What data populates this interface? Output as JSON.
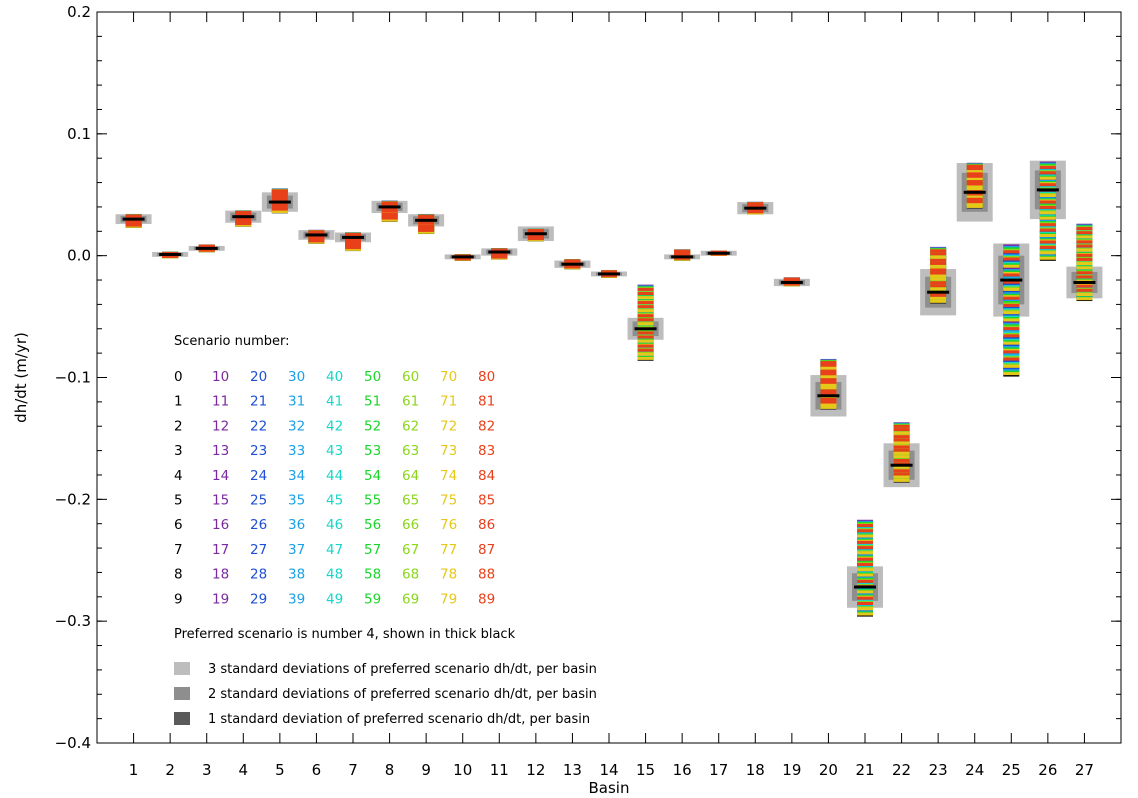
{
  "chart_data": {
    "type": "scatter",
    "xlabel": "Basin",
    "ylabel": "dh/dt (m/yr)",
    "ylim": [
      -0.4,
      0.2
    ],
    "xlim": [
      0,
      28
    ],
    "y_ticks": [
      "0.2",
      "0.1",
      "0.0",
      "−0.1",
      "−0.2",
      "−0.3",
      "−0.4"
    ],
    "y_tick_values": [
      0.2,
      0.1,
      0.0,
      -0.1,
      -0.2,
      -0.3,
      -0.4
    ],
    "x_ticks": [
      "1",
      "2",
      "3",
      "4",
      "5",
      "6",
      "7",
      "8",
      "9",
      "10",
      "11",
      "12",
      "13",
      "14",
      "15",
      "16",
      "17",
      "18",
      "19",
      "20",
      "21",
      "22",
      "23",
      "24",
      "25",
      "26",
      "27"
    ],
    "basins": [
      1,
      2,
      3,
      4,
      5,
      6,
      7,
      8,
      9,
      10,
      11,
      12,
      13,
      14,
      15,
      16,
      17,
      18,
      19,
      20,
      21,
      22,
      23,
      24,
      25,
      26,
      27
    ],
    "preferred_dhdt": [
      0.03,
      0.001,
      0.006,
      0.032,
      0.044,
      0.017,
      0.015,
      0.04,
      0.029,
      -0.001,
      0.003,
      0.018,
      -0.007,
      -0.015,
      -0.06,
      -0.001,
      0.002,
      0.039,
      -0.022,
      -0.115,
      -0.272,
      -0.172,
      -0.03,
      0.052,
      -0.02,
      0.054,
      -0.022
    ],
    "scenario_min": [
      0.024,
      -0.001,
      0.004,
      0.025,
      0.036,
      0.011,
      0.005,
      0.029,
      0.019,
      -0.003,
      -0.002,
      0.013,
      -0.01,
      -0.017,
      -0.085,
      -0.003,
      0.001,
      0.035,
      -0.024,
      -0.125,
      -0.295,
      -0.185,
      -0.038,
      0.04,
      -0.098,
      -0.003,
      -0.036
    ],
    "scenario_max": [
      0.033,
      0.002,
      0.008,
      0.036,
      0.054,
      0.02,
      0.018,
      0.044,
      0.033,
      0.0,
      0.005,
      0.021,
      -0.004,
      -0.013,
      -0.025,
      0.004,
      0.003,
      0.043,
      -0.019,
      -0.086,
      -0.218,
      -0.138,
      0.006,
      0.075,
      0.008,
      0.076,
      0.025
    ],
    "sd3_halfwidth": [
      0.004,
      0.002,
      0.002,
      0.005,
      0.008,
      0.004,
      0.004,
      0.005,
      0.005,
      0.002,
      0.003,
      0.006,
      0.003,
      0.002,
      0.009,
      0.002,
      0.002,
      0.005,
      0.003,
      0.017,
      0.017,
      0.018,
      0.019,
      0.024,
      0.03,
      0.024,
      0.013
    ],
    "scenario_legend": {
      "title": "Scenario number:",
      "rows": 10,
      "columns": 9
    },
    "preferred_note": "Preferred scenario is number 4, shown in thick black",
    "sd_legend": [
      "3 standard deviations of preferred scenario dh/dt, per basin",
      "2 standard deviations of preferred scenario dh/dt, per basin",
      "1 standard deviation of preferred scenario dh/dt, per basin"
    ],
    "colors": {
      "sd3": "#bdbdbd",
      "sd2": "#8e8e8e",
      "sd1": "#5a5a5a",
      "preferred": "#000000",
      "scenario_groups": [
        "#000000",
        "#7a2aa0",
        "#1f4fd6",
        "#1aa0e6",
        "#17d6c9",
        "#1ad62a",
        "#8ad61a",
        "#e6c81a",
        "#e8401a"
      ]
    }
  }
}
